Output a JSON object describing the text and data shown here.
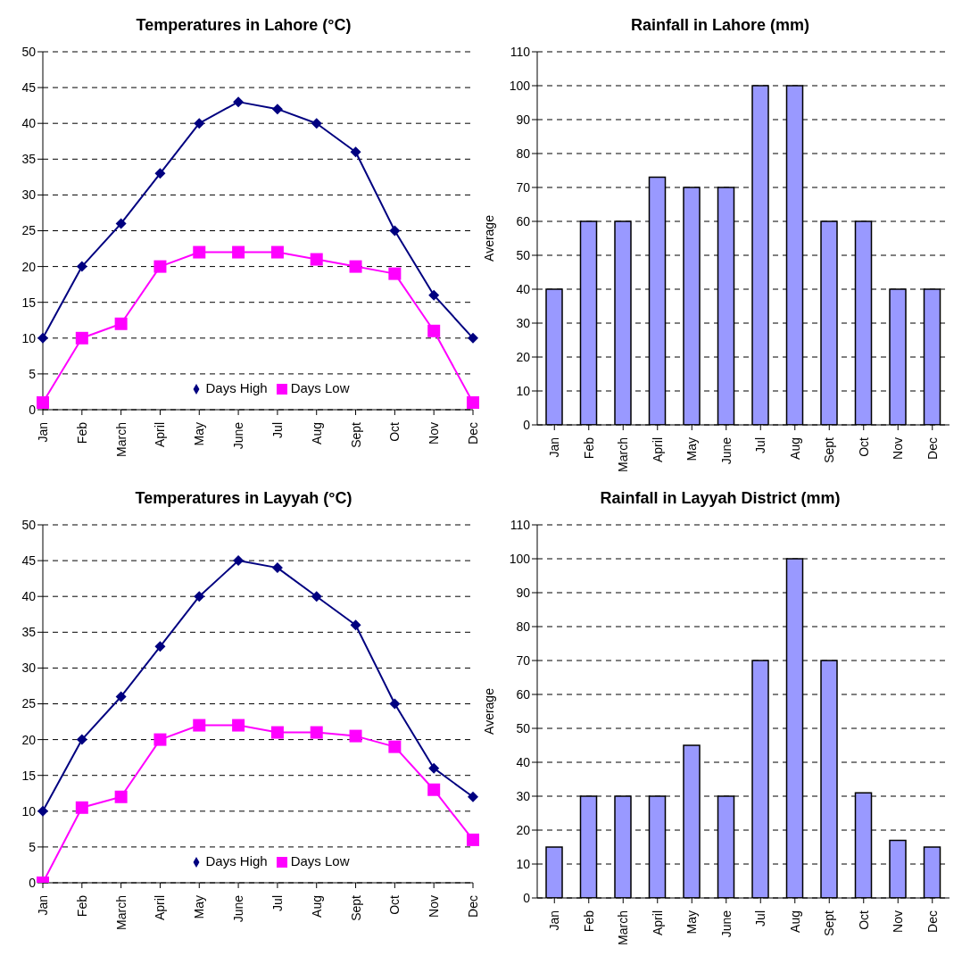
{
  "chart_data": [
    {
      "type": "line",
      "title": "Temperatures in Lahore (°C)",
      "categories": [
        "Jan",
        "Feb",
        "March",
        "April",
        "May",
        "June",
        "Jul",
        "Aug",
        "Sept",
        "Oct",
        "Nov",
        "Dec"
      ],
      "series": [
        {
          "name": "Days High",
          "color": "#000080",
          "marker": "diamond",
          "values": [
            10,
            20,
            26,
            33,
            40,
            43,
            42,
            40,
            36,
            25,
            16,
            10
          ]
        },
        {
          "name": "Days Low",
          "color": "#ff00ff",
          "marker": "square",
          "values": [
            1,
            10,
            12,
            20,
            22,
            22,
            22,
            21,
            20,
            19,
            11,
            1
          ]
        }
      ],
      "ylim": [
        0,
        50
      ],
      "yticks": [
        0,
        5,
        10,
        15,
        20,
        25,
        30,
        35,
        40,
        45,
        50
      ],
      "grid": "y",
      "legend": "bottom"
    },
    {
      "type": "bar",
      "title": "Rainfall in Lahore (mm)",
      "ylabel": "Average",
      "categories": [
        "Jan",
        "Feb",
        "March",
        "April",
        "May",
        "June",
        "Jul",
        "Aug",
        "Sept",
        "Oct",
        "Nov",
        "Dec"
      ],
      "values": [
        40,
        60,
        60,
        73,
        70,
        70,
        100,
        100,
        60,
        60,
        40,
        40
      ],
      "color": "#9999ff",
      "ylim": [
        0,
        110
      ],
      "yticks": [
        0,
        10,
        20,
        30,
        40,
        50,
        60,
        70,
        80,
        90,
        100,
        110
      ],
      "grid": "y"
    },
    {
      "type": "line",
      "title": "Temperatures in Layyah (°C)",
      "categories": [
        "Jan",
        "Feb",
        "March",
        "April",
        "May",
        "June",
        "Jul",
        "Aug",
        "Sept",
        "Oct",
        "Nov",
        "Dec"
      ],
      "series": [
        {
          "name": "Days High",
          "color": "#000080",
          "marker": "diamond",
          "values": [
            10,
            20,
            26,
            33,
            40,
            45,
            44,
            40,
            36,
            25,
            16,
            12
          ]
        },
        {
          "name": "Days Low",
          "color": "#ff00ff",
          "marker": "square",
          "values": [
            0,
            10.5,
            12,
            20,
            22,
            22,
            21,
            21,
            20.5,
            19,
            13,
            6
          ]
        }
      ],
      "ylim": [
        0,
        50
      ],
      "yticks": [
        0,
        5,
        10,
        15,
        20,
        25,
        30,
        35,
        40,
        45,
        50
      ],
      "grid": "y",
      "legend": "bottom"
    },
    {
      "type": "bar",
      "title": "Rainfall in Layyah District (mm)",
      "ylabel": "Average",
      "categories": [
        "Jan",
        "Feb",
        "March",
        "April",
        "May",
        "June",
        "Jul",
        "Aug",
        "Sept",
        "Oct",
        "Nov",
        "Dec"
      ],
      "values": [
        15,
        30,
        30,
        30,
        45,
        30,
        70,
        100,
        70,
        31,
        17,
        15
      ],
      "color": "#9999ff",
      "ylim": [
        0,
        110
      ],
      "yticks": [
        0,
        10,
        20,
        30,
        40,
        50,
        60,
        70,
        80,
        90,
        100,
        110
      ],
      "grid": "y"
    }
  ]
}
